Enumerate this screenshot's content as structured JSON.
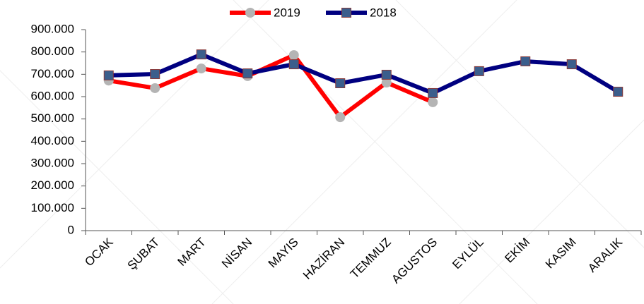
{
  "chart_data": {
    "type": "line",
    "categories": [
      "OCAK",
      "ŞUBAT",
      "MART",
      "NİSAN",
      "MAYIS",
      "HAZİRAN",
      "TEMMUZ",
      "AGUSTOS",
      "EYLÜL",
      "EKİM",
      "KASIM",
      "ARALIK"
    ],
    "series": [
      {
        "name": "2019",
        "color": "#ff0000",
        "marker_color": "#b4b4b4",
        "marker": "circle",
        "values": [
          672000,
          638000,
          726000,
          692000,
          786000,
          508000,
          663000,
          575000,
          null,
          null,
          null,
          null
        ]
      },
      {
        "name": "2018",
        "color": "#000080",
        "marker_color": "#3b5e8c",
        "marker": "square",
        "values": [
          695000,
          701000,
          789000,
          704000,
          745000,
          660000,
          698000,
          616000,
          714000,
          758000,
          745000,
          622000
        ]
      }
    ],
    "ylim": [
      0,
      900000
    ],
    "yticks": [
      0,
      {
        "value": 100000,
        "label": "100.000"
      },
      {
        "value": 200000,
        "label": "200.000"
      },
      {
        "value": 300000,
        "label": "300.000"
      },
      {
        "value": 400000,
        "label": "400.000"
      },
      {
        "value": 500000,
        "label": "500.000"
      },
      {
        "value": 600000,
        "label": "600.000"
      },
      {
        "value": 700000,
        "label": "700.000"
      },
      {
        "value": 800000,
        "label": "800.000"
      },
      {
        "value": 900000,
        "label": "900.000"
      }
    ],
    "legend": "top",
    "grid": false
  }
}
